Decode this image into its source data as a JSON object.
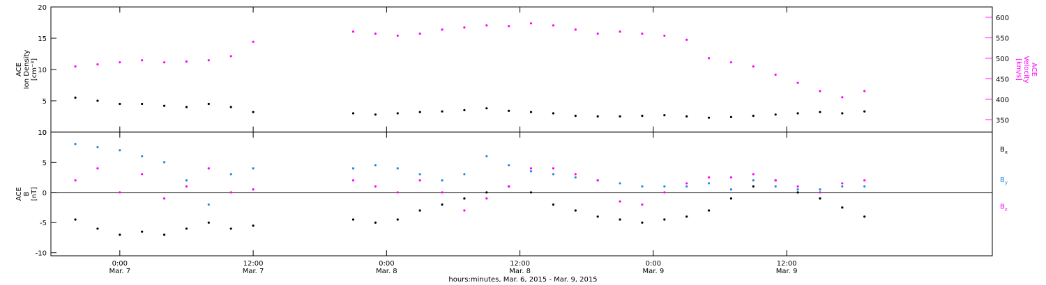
{
  "chart_data": [
    {
      "type": "scatter",
      "panel": "top",
      "ylabel_left": [
        "ACE",
        "Ion Density",
        "[cm⁻³]"
      ],
      "ylabel_right": [
        "ACE",
        "Velocity",
        "[km/s]"
      ],
      "ylim_left": [
        0,
        20
      ],
      "yticks_left": [
        0,
        5,
        10,
        15,
        20
      ],
      "ylim_right": [
        320,
        625
      ],
      "yticks_right": [
        350,
        400,
        450,
        500,
        550,
        600
      ],
      "series": [
        {
          "axis": "left",
          "color": "#000000",
          "x": [
            -4,
            -2,
            0,
            2,
            4,
            6,
            8,
            10,
            12,
            21,
            23,
            25,
            27,
            29,
            31,
            33,
            35,
            37,
            39,
            41,
            43,
            45,
            47,
            49,
            51,
            53,
            55,
            57,
            59,
            61,
            63,
            65,
            67
          ],
          "y": [
            5.5,
            5.0,
            4.5,
            4.5,
            4.2,
            4.0,
            4.5,
            4.0,
            3.2,
            3.0,
            2.8,
            3.0,
            3.2,
            3.3,
            3.5,
            3.8,
            3.4,
            3.2,
            3.0,
            2.6,
            2.5,
            2.5,
            2.6,
            2.7,
            2.5,
            2.3,
            2.4,
            2.6,
            2.8,
            3.0,
            3.2,
            3.0,
            3.3
          ]
        },
        {
          "axis": "right",
          "color": "#ff00ff",
          "x": [
            -4,
            -2,
            0,
            2,
            4,
            6,
            8,
            10,
            12,
            21,
            23,
            25,
            27,
            29,
            31,
            33,
            35,
            37,
            39,
            41,
            43,
            45,
            47,
            49,
            51,
            53,
            55,
            57,
            59,
            61,
            63,
            65,
            67
          ],
          "y": [
            480,
            485,
            490,
            495,
            490,
            492,
            495,
            505,
            540,
            565,
            560,
            555,
            560,
            570,
            575,
            580,
            578,
            585,
            580,
            570,
            560,
            565,
            560,
            555,
            545,
            500,
            490,
            480,
            460,
            440,
            420,
            405,
            420
          ]
        }
      ]
    },
    {
      "type": "scatter",
      "panel": "bottom",
      "ylabel_left": [
        "ACE",
        "B",
        "[nT]"
      ],
      "ylim_left": [
        -10.5,
        10
      ],
      "yticks_left": [
        -10,
        -5,
        0,
        5,
        10
      ],
      "zero_line": true,
      "legend_placement": "right",
      "series": [
        {
          "name": "B_x",
          "label_main": "B",
          "label_sub": "x",
          "color": "#000000",
          "x": [
            -4,
            -2,
            0,
            2,
            4,
            6,
            8,
            10,
            12,
            21,
            23,
            25,
            27,
            29,
            31,
            33,
            35,
            37,
            39,
            41,
            43,
            45,
            47,
            49,
            51,
            53,
            55,
            57,
            59,
            61,
            63,
            65,
            67
          ],
          "y": [
            -4.5,
            -6.0,
            -7.0,
            -6.5,
            -7.0,
            -6.0,
            -5.0,
            -6.0,
            -5.5,
            -4.5,
            -5.0,
            -4.5,
            -3.0,
            -2.0,
            -1.0,
            0.0,
            1.0,
            0.0,
            -2.0,
            -3.0,
            -4.0,
            -4.5,
            -5.0,
            -4.5,
            -4.0,
            -3.0,
            -1.0,
            1.0,
            2.0,
            0.0,
            -1.0,
            -2.5,
            -4.0
          ]
        },
        {
          "name": "B_y",
          "label_main": "B",
          "label_sub": "y",
          "color": "#1e88e5",
          "x": [
            -4,
            -2,
            0,
            2,
            4,
            6,
            8,
            10,
            12,
            21,
            23,
            25,
            27,
            29,
            31,
            33,
            35,
            37,
            39,
            41,
            43,
            45,
            47,
            49,
            51,
            53,
            55,
            57,
            59,
            61,
            63,
            65,
            67
          ],
          "y": [
            8.0,
            7.5,
            7.0,
            6.0,
            5.0,
            2.0,
            -2.0,
            3.0,
            4.0,
            4.0,
            4.5,
            4.0,
            3.0,
            2.0,
            3.0,
            6.0,
            4.5,
            3.5,
            3.0,
            2.5,
            2.0,
            1.5,
            1.0,
            1.0,
            1.0,
            1.5,
            0.5,
            2.0,
            1.0,
            0.5,
            0.5,
            1.0,
            1.0
          ]
        },
        {
          "name": "B_z",
          "label_main": "B",
          "label_sub": "z",
          "color": "#ff00ff",
          "x": [
            -4,
            -2,
            0,
            2,
            4,
            6,
            8,
            10,
            12,
            21,
            23,
            25,
            27,
            29,
            31,
            33,
            35,
            37,
            39,
            41,
            43,
            45,
            47,
            49,
            51,
            53,
            55,
            57,
            59,
            61,
            63,
            65,
            67
          ],
          "y": [
            2.0,
            4.0,
            0.0,
            3.0,
            -1.0,
            1.0,
            4.0,
            0.0,
            0.5,
            2.0,
            1.0,
            0.0,
            2.0,
            0.0,
            -3.0,
            -1.0,
            1.0,
            4.0,
            4.0,
            3.0,
            2.0,
            -1.5,
            -2.0,
            0.0,
            1.5,
            2.5,
            2.5,
            3.0,
            2.0,
            1.0,
            0.0,
            1.5,
            2.0
          ]
        }
      ]
    }
  ],
  "x_axis": {
    "xlim": [
      -6.2,
      78.5
    ],
    "ticks": [
      {
        "x": 0,
        "time": "0:00",
        "date": "Mar. 7"
      },
      {
        "x": 12,
        "time": "12:00",
        "date": "Mar. 7"
      },
      {
        "x": 24,
        "time": "0:00",
        "date": "Mar. 8"
      },
      {
        "x": 36,
        "time": "12:00",
        "date": "Mar. 8"
      },
      {
        "x": 48,
        "time": "0:00",
        "date": "Mar. 9"
      },
      {
        "x": 60,
        "time": "12:00",
        "date": "Mar. 9"
      }
    ],
    "xlabel": "hours:minutes, Mar. 6, 2015 - Mar. 9, 2015"
  }
}
